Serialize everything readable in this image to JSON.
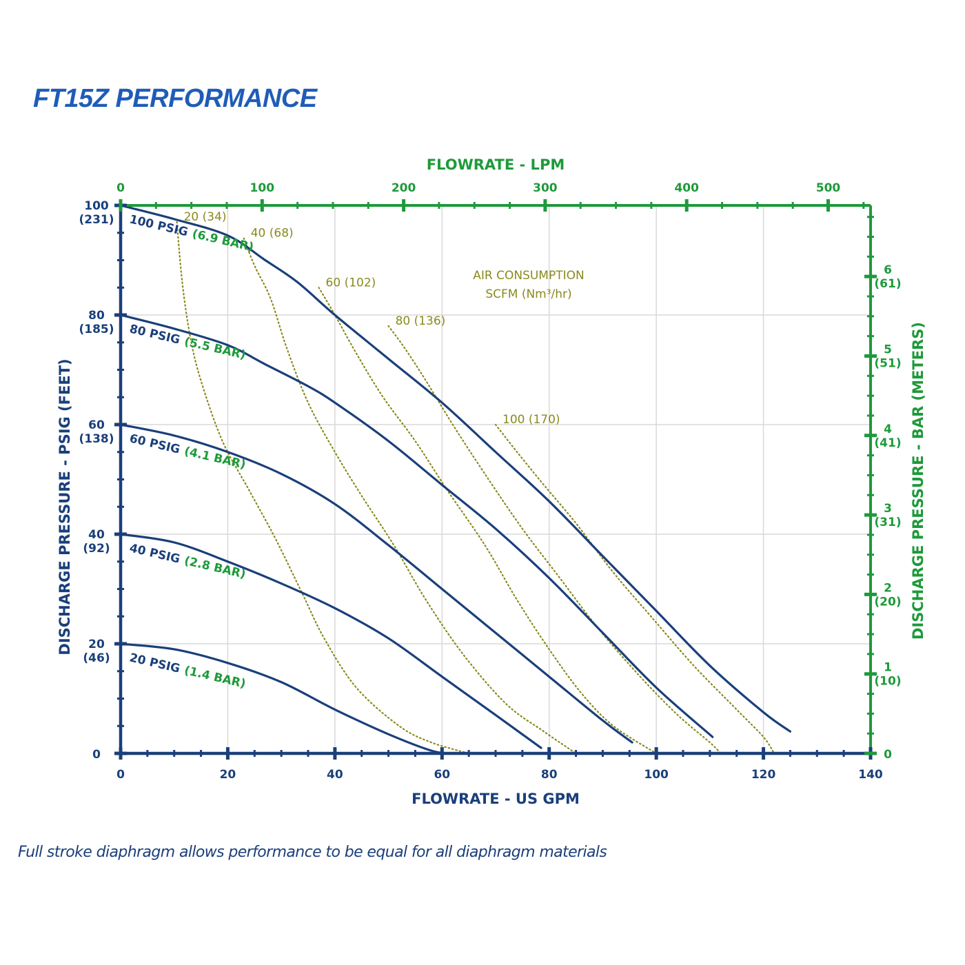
{
  "title": "FT15Z PERFORMANCE",
  "footnote": "Full stroke diaphragm allows performance to be equal for all diaphragm materials",
  "colors": {
    "blue": "#1a3f7a",
    "green": "#1e9a3a",
    "olive": "#8a8a1e",
    "grid": "#d9d9d9"
  },
  "chart_data": {
    "type": "line",
    "title": "FT15Z PERFORMANCE",
    "xlabel": "FLOWRATE - US GPM",
    "ylabel": "DISCHARGE PRESSURE - PSIG (FEET)",
    "x2label": "FLOWRATE - LPM",
    "y2label": "DISCHARGE PRESSURE - BAR (METERS)",
    "xlim": [
      0,
      140
    ],
    "ylim": [
      0,
      100
    ],
    "grid": true,
    "x_ticks": [
      "0",
      "20",
      "40",
      "60",
      "80",
      "100",
      "120",
      "140"
    ],
    "x_tick_values": [
      0,
      20,
      40,
      60,
      80,
      100,
      120,
      140
    ],
    "y_ticks": [
      {
        "value": 0,
        "label": "0",
        "sub": ""
      },
      {
        "value": 20,
        "label": "20",
        "sub": "(46)"
      },
      {
        "value": 40,
        "label": "40",
        "sub": "(92)"
      },
      {
        "value": 60,
        "label": "60",
        "sub": "(138)"
      },
      {
        "value": 80,
        "label": "80",
        "sub": "(185)"
      },
      {
        "value": 100,
        "label": "100",
        "sub": "(231)"
      }
    ],
    "x2_ticks": [
      {
        "lpm": 0,
        "label": "0"
      },
      {
        "lpm": 100,
        "label": "100"
      },
      {
        "lpm": 200,
        "label": "200"
      },
      {
        "lpm": 300,
        "label": "300"
      },
      {
        "lpm": 400,
        "label": "400"
      },
      {
        "lpm": 500,
        "label": "500"
      }
    ],
    "y2_ticks": [
      {
        "bar": 0,
        "label": "0",
        "sub": ""
      },
      {
        "bar": 1,
        "label": "1",
        "sub": "(10)"
      },
      {
        "bar": 2,
        "label": "2",
        "sub": "(20)"
      },
      {
        "bar": 3,
        "label": "3",
        "sub": "(31)"
      },
      {
        "bar": 4,
        "label": "4",
        "sub": "(41)"
      },
      {
        "bar": 5,
        "label": "5",
        "sub": "(51)"
      },
      {
        "bar": 6,
        "label": "6",
        "sub": "(61)"
      }
    ],
    "series": [
      {
        "name": "100 PSIG",
        "name_alt": "(6.9 BAR)",
        "points": [
          [
            0,
            100
          ],
          [
            10,
            97.5
          ],
          [
            20,
            94.5
          ],
          [
            27,
            90
          ],
          [
            33,
            86
          ],
          [
            40,
            80
          ],
          [
            50,
            72
          ],
          [
            60,
            64
          ],
          [
            70,
            55
          ],
          [
            80,
            46
          ],
          [
            90,
            36
          ],
          [
            100,
            26
          ],
          [
            110,
            16
          ],
          [
            120,
            7.5
          ],
          [
            125,
            4
          ]
        ]
      },
      {
        "name": "80 PSIG",
        "name_alt": "(5.5 BAR)",
        "points": [
          [
            0,
            80
          ],
          [
            10,
            77.5
          ],
          [
            20,
            74.5
          ],
          [
            27,
            71
          ],
          [
            35,
            67
          ],
          [
            40,
            64
          ],
          [
            50,
            57
          ],
          [
            60,
            49
          ],
          [
            70,
            41
          ],
          [
            80,
            32
          ],
          [
            90,
            22
          ],
          [
            100,
            12
          ],
          [
            110.5,
            3
          ]
        ]
      },
      {
        "name": "60 PSIG",
        "name_alt": "(4.1 BAR)",
        "points": [
          [
            0,
            60
          ],
          [
            10,
            58
          ],
          [
            20,
            55
          ],
          [
            30,
            51
          ],
          [
            40,
            45.5
          ],
          [
            50,
            38
          ],
          [
            60,
            30
          ],
          [
            70,
            22
          ],
          [
            80,
            14
          ],
          [
            90,
            6
          ],
          [
            95.5,
            2
          ]
        ]
      },
      {
        "name": "40 PSIG",
        "name_alt": "(2.8 BAR)",
        "points": [
          [
            0,
            40
          ],
          [
            10,
            38.5
          ],
          [
            20,
            35
          ],
          [
            30,
            31
          ],
          [
            40,
            26.5
          ],
          [
            50,
            21
          ],
          [
            60,
            14
          ],
          [
            70,
            7
          ],
          [
            78.5,
            1
          ]
        ]
      },
      {
        "name": "20 PSIG",
        "name_alt": "(1.4 BAR)",
        "points": [
          [
            0,
            20
          ],
          [
            10,
            19
          ],
          [
            20,
            16.5
          ],
          [
            30,
            13
          ],
          [
            40,
            8
          ],
          [
            50,
            3.5
          ],
          [
            58,
            0.5
          ],
          [
            61.5,
            0
          ]
        ]
      }
    ],
    "air_consumption": {
      "title": "AIR CONSUMPTION",
      "subtitle": "SCFM (Nm³/hr)",
      "curves": [
        {
          "label": "20 (34)",
          "points": [
            [
              10.5,
              97
            ],
            [
              11.5,
              86
            ],
            [
              13,
              76
            ],
            [
              15,
              68
            ],
            [
              19,
              57
            ],
            [
              24,
              48
            ],
            [
              29,
              39
            ],
            [
              34,
              29
            ],
            [
              38,
              21
            ],
            [
              44,
              12
            ],
            [
              52,
              5
            ],
            [
              58,
              2
            ],
            [
              65,
              0
            ]
          ]
        },
        {
          "label": "40 (68)",
          "points": [
            [
              23,
              94
            ],
            [
              25,
              89
            ],
            [
              28,
              83
            ],
            [
              31,
              74
            ],
            [
              35,
              64
            ],
            [
              40,
              55
            ],
            [
              45,
              47
            ],
            [
              51,
              38
            ],
            [
              57,
              28
            ],
            [
              64,
              18
            ],
            [
              72,
              9
            ],
            [
              79,
              4
            ],
            [
              85,
              0
            ]
          ]
        },
        {
          "label": "60 (102)",
          "points": [
            [
              37,
              85
            ],
            [
              40,
              80
            ],
            [
              44,
              73
            ],
            [
              49,
              65
            ],
            [
              55,
              57
            ],
            [
              61,
              48
            ],
            [
              68,
              38
            ],
            [
              74,
              28
            ],
            [
              80,
              19
            ],
            [
              86,
              11
            ],
            [
              92,
              5
            ],
            [
              100,
              0
            ]
          ]
        },
        {
          "label": "80 (136)",
          "points": [
            [
              50,
              78
            ],
            [
              53,
              74
            ],
            [
              57,
              68
            ],
            [
              62,
              60
            ],
            [
              68,
              51
            ],
            [
              75,
              41
            ],
            [
              82,
              32
            ],
            [
              89,
              23
            ],
            [
              97,
              14
            ],
            [
              104,
              7
            ],
            [
              110,
              2
            ],
            [
              112,
              0
            ]
          ]
        },
        {
          "label": "100 (170)",
          "points": [
            [
              70,
              60
            ],
            [
              74,
              55
            ],
            [
              79,
              49
            ],
            [
              85,
              42
            ],
            [
              92,
              33
            ],
            [
              99,
              25
            ],
            [
              107,
              16
            ],
            [
              115,
              8
            ],
            [
              120,
              3
            ],
            [
              122,
              0
            ]
          ]
        }
      ]
    }
  }
}
